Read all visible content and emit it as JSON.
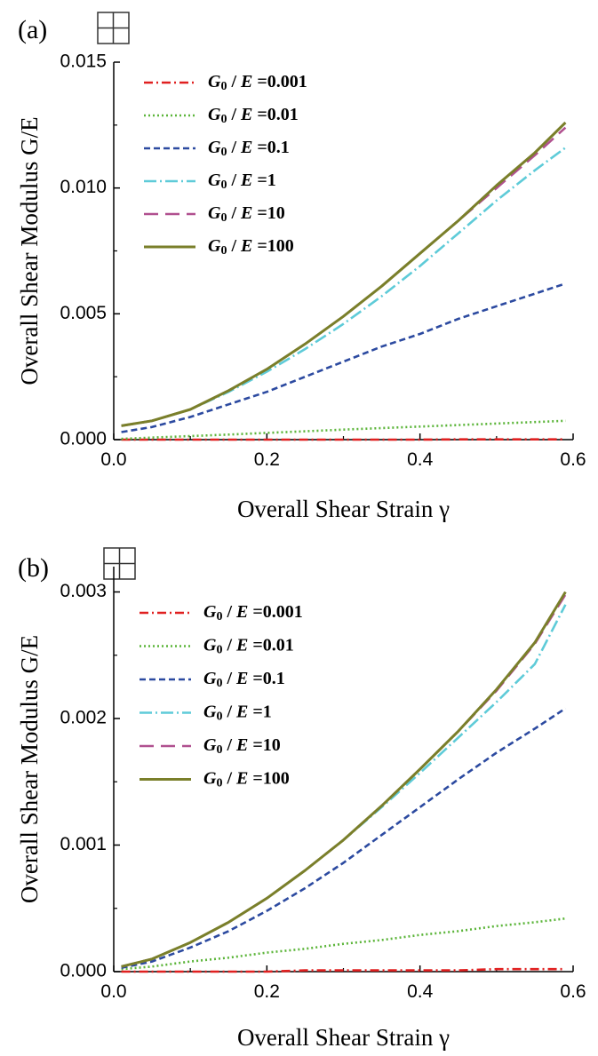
{
  "chart_data": [
    {
      "panel_label": "(a)",
      "type": "line",
      "xlabel": "Overall Shear Strain γ",
      "ylabel": "Overall Shear Modulus G/E",
      "xlim": [
        0.0,
        0.6
      ],
      "ylim": [
        0.0,
        0.015
      ],
      "x_ticks": [
        "0.0",
        "0.2",
        "0.4",
        "0.6"
      ],
      "y_ticks": [
        "0.000",
        "0.005",
        "0.010",
        "0.015"
      ],
      "legend_position": "top-left",
      "grid": false,
      "x": [
        0.01,
        0.05,
        0.1,
        0.15,
        0.2,
        0.25,
        0.3,
        0.35,
        0.4,
        0.45,
        0.5,
        0.55,
        0.59
      ],
      "series": [
        {
          "name": "G0 / E =0.001",
          "legend_value": "=0.001",
          "color": "#e02020",
          "dash": "dashdot",
          "values": [
            0.0,
            0.0,
            0.0,
            0.0,
            0.0,
            0.0,
            0.0,
            0.0,
            0.0,
            1e-05,
            1e-05,
            1e-05,
            1e-05
          ]
        },
        {
          "name": "G0 / E =0.01",
          "legend_value": "=0.01",
          "color": "#5cb53a",
          "dash": "dot",
          "values": [
            3e-05,
            8e-05,
            0.00014,
            0.0002,
            0.00027,
            0.00033,
            0.0004,
            0.00046,
            0.00052,
            0.00058,
            0.00064,
            0.0007,
            0.00075
          ]
        },
        {
          "name": "G0 / E =0.1",
          "legend_value": "=0.1",
          "color": "#2c4aa0",
          "dash": "dash",
          "values": [
            0.0003,
            0.0005,
            0.0009,
            0.0014,
            0.0019,
            0.0025,
            0.0031,
            0.0037,
            0.0042,
            0.0048,
            0.0053,
            0.0058,
            0.0062
          ]
        },
        {
          "name": "G0 / E =1",
          "legend_value": "=1",
          "color": "#5ecbd8",
          "dash": "dashdotlong",
          "values": [
            0.00055,
            0.00075,
            0.0012,
            0.0019,
            0.0027,
            0.0036,
            0.0046,
            0.0057,
            0.0069,
            0.0082,
            0.0095,
            0.0107,
            0.0116
          ]
        },
        {
          "name": "G0 / E =10",
          "legend_value": "=10",
          "color": "#b0508f",
          "dash": "longdash",
          "values": [
            0.00055,
            0.00075,
            0.0012,
            0.00195,
            0.0028,
            0.0038,
            0.0049,
            0.0061,
            0.0074,
            0.0087,
            0.01,
            0.0113,
            0.0124
          ]
        },
        {
          "name": "G0 / E =100",
          "legend_value": "=100",
          "color": "#7a7f2a",
          "dash": "solid",
          "values": [
            0.00055,
            0.00075,
            0.0012,
            0.00195,
            0.0028,
            0.0038,
            0.0049,
            0.0061,
            0.0074,
            0.0087,
            0.0101,
            0.0114,
            0.0126
          ]
        }
      ]
    },
    {
      "panel_label": "(b)",
      "type": "line",
      "xlabel": "Overall Shear Strain γ",
      "ylabel": "Overall Shear Modulus G/E",
      "xlim": [
        0.0,
        0.6
      ],
      "ylim": [
        0.0,
        0.0032
      ],
      "x_ticks": [
        "0.0",
        "0.2",
        "0.4",
        "0.6"
      ],
      "y_ticks": [
        "0.000",
        "0.001",
        "0.002",
        "0.003"
      ],
      "legend_position": "top-left",
      "grid": false,
      "x": [
        0.01,
        0.05,
        0.1,
        0.15,
        0.2,
        0.25,
        0.3,
        0.35,
        0.4,
        0.45,
        0.5,
        0.55,
        0.59
      ],
      "series": [
        {
          "name": "G0 / E =0.001",
          "legend_value": "=0.001",
          "color": "#e02020",
          "dash": "dashdot",
          "values": [
            0.0,
            0.0,
            0.0,
            0.0,
            0.0,
            1e-05,
            1e-05,
            1e-05,
            1e-05,
            1e-05,
            2e-05,
            2e-05,
            2e-05
          ]
        },
        {
          "name": "G0 / E =0.01",
          "legend_value": "=0.01",
          "color": "#5cb53a",
          "dash": "dot",
          "values": [
            2e-05,
            4e-05,
            8e-05,
            0.00011,
            0.00015,
            0.00018,
            0.00022,
            0.00025,
            0.00029,
            0.00032,
            0.00036,
            0.00039,
            0.00042
          ]
        },
        {
          "name": "G0 / E =0.1",
          "legend_value": "=0.1",
          "color": "#2c4aa0",
          "dash": "dash",
          "values": [
            3e-05,
            8e-05,
            0.00019,
            0.00032,
            0.00048,
            0.00066,
            0.00086,
            0.00108,
            0.0013,
            0.00152,
            0.00173,
            0.00192,
            0.00208
          ]
        },
        {
          "name": "G0 / E =1",
          "legend_value": "=1",
          "color": "#5ecbd8",
          "dash": "dashdotlong",
          "values": [
            4e-05,
            0.0001,
            0.00023,
            0.00039,
            0.00058,
            0.0008,
            0.00104,
            0.0013,
            0.00157,
            0.00185,
            0.00213,
            0.00243,
            0.0029
          ]
        },
        {
          "name": "G0 / E =10",
          "legend_value": "=10",
          "color": "#b0508f",
          "dash": "longdash",
          "values": [
            4e-05,
            0.0001,
            0.00023,
            0.00039,
            0.00058,
            0.0008,
            0.00104,
            0.00131,
            0.0016,
            0.0019,
            0.00222,
            0.00259,
            0.00298
          ]
        },
        {
          "name": "G0 / E =100",
          "legend_value": "=100",
          "color": "#7a7f2a",
          "dash": "solid",
          "values": [
            4e-05,
            0.0001,
            0.00023,
            0.00039,
            0.00058,
            0.0008,
            0.00104,
            0.00131,
            0.0016,
            0.0019,
            0.00223,
            0.0026,
            0.003
          ]
        }
      ]
    }
  ]
}
